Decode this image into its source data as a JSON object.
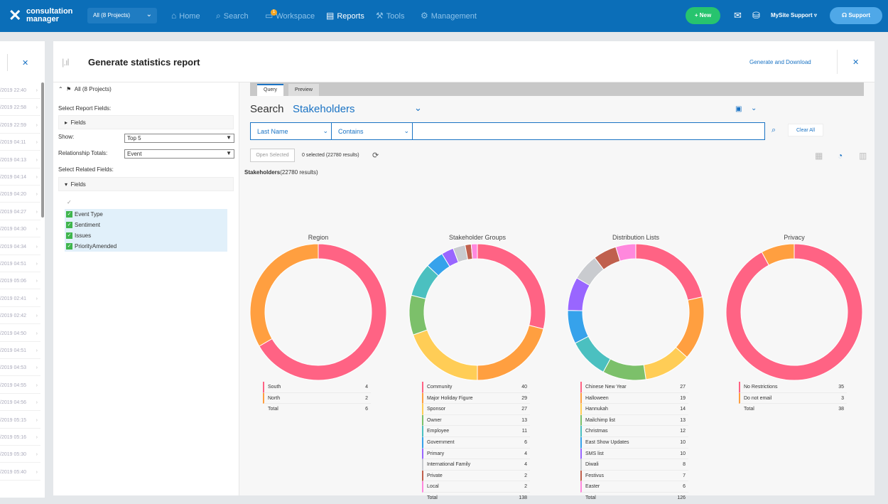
{
  "topbar": {
    "logo_line1": "consultation",
    "logo_line2": "manager",
    "project_select": "All (8 Projects)",
    "nav": [
      {
        "label": "Home",
        "icon": "home-icon",
        "glyph": "⌂"
      },
      {
        "label": "Search",
        "icon": "search-icon",
        "glyph": "⌕"
      },
      {
        "label": "Workspace",
        "icon": "workspace-icon",
        "glyph": "▭",
        "badge": "1"
      },
      {
        "label": "Reports",
        "icon": "reports-icon",
        "glyph": "▤"
      },
      {
        "label": "Tools",
        "icon": "wrench-icon",
        "glyph": "⚒"
      },
      {
        "label": "Management",
        "icon": "gear-icon",
        "glyph": "⚙"
      }
    ],
    "new_button": "+ New",
    "site_label": "MySite Support ▿",
    "support_button": "Support"
  },
  "left_strip": {
    "timestamps": [
      "/2019 22:40",
      "/2019 22:58",
      "/2019 22:59",
      "/2019 04:11",
      "/2019 04:13",
      "/2019 04:14",
      "/2019 04:20",
      "/2019 04:27",
      "/2019 04:30",
      "/2019 04:34",
      "/2019 04:51",
      "/2019 05:06",
      "/2019 02:41",
      "/2019 02:42",
      "/2019 04:50",
      "/2019 04:51",
      "/2019 04:53",
      "/2019 04:55",
      "/2019 04:56",
      "/2019 05:15",
      "/2019 05:16",
      "/2019 05:30",
      "/2019 05:40"
    ]
  },
  "panel": {
    "title": "Generate statistics report",
    "generate_link": "Generate and Download"
  },
  "settings": {
    "scope": "All (8 Projects)",
    "report_fields_label": "Select Report Fields:",
    "fields_label": "Fields",
    "show_label": "Show:",
    "show_value": "Top 5",
    "relationship_label": "Relationship Totals:",
    "relationship_value": "Event",
    "related_label": "Select Related Fields:",
    "related_fields_label": "Fields",
    "checked_fields": [
      "Event Type",
      "Sentiment",
      "Issues",
      "PriorityAmended"
    ]
  },
  "query": {
    "tabs": [
      "Query",
      "Preview"
    ],
    "search_label": "Search",
    "entity": "Stakeholders",
    "filter_field": "Last Name",
    "filter_op": "Contains",
    "filter_value": "",
    "clear_all": "Clear All",
    "open_selected": "Open Selected",
    "selected_count": "0 selected (22780 results)",
    "result_title": "Stakeholders",
    "result_count": "(22780 results)"
  },
  "colors": {
    "pink": "#ff6384",
    "orange": "#ff9f40",
    "yellow": "#ffcd56",
    "green": "#7cc06a",
    "teal": "#4bc0c0",
    "blue": "#36a2eb",
    "purple": "#9966ff",
    "gray": "#c9cbcf",
    "brown": "#c0604d",
    "light_pink": "#ff88dd"
  },
  "chart_data": [
    {
      "type": "pie",
      "title": "Region",
      "categories": [
        "South",
        "North"
      ],
      "values": [
        4,
        2
      ],
      "colors": [
        "#ff6384",
        "#ff9f40"
      ],
      "total_label": "Total",
      "total": 6
    },
    {
      "type": "pie",
      "title": "Stakeholder Groups",
      "categories": [
        "Community",
        "Major Holiday Figure",
        "Sponsor",
        "Owner",
        "Employee",
        "Government",
        "Primary",
        "International Family",
        "Private",
        "Local"
      ],
      "values": [
        40,
        29,
        27,
        13,
        11,
        6,
        4,
        4,
        2,
        2
      ],
      "colors": [
        "#ff6384",
        "#ff9f40",
        "#ffcd56",
        "#7cc06a",
        "#4bc0c0",
        "#36a2eb",
        "#9966ff",
        "#c9cbcf",
        "#c0604d",
        "#ff88dd"
      ],
      "total_label": "Total",
      "total": 138
    },
    {
      "type": "pie",
      "title": "Distribution Lists",
      "categories": [
        "Chinese New Year",
        "Halloween",
        "Hannukah",
        "Mailchimp list",
        "Christmas",
        "East Show Updates",
        "SMS list",
        "Diwali",
        "Festivus",
        "Easter"
      ],
      "values": [
        27,
        19,
        14,
        13,
        12,
        10,
        10,
        8,
        7,
        6
      ],
      "colors": [
        "#ff6384",
        "#ff9f40",
        "#ffcd56",
        "#7cc06a",
        "#4bc0c0",
        "#36a2eb",
        "#9966ff",
        "#c9cbcf",
        "#c0604d",
        "#ff88dd"
      ],
      "total_label": "Total",
      "total": 126
    },
    {
      "type": "pie",
      "title": "Privacy",
      "categories": [
        "No Restrictions",
        "Do not email"
      ],
      "values": [
        35,
        3
      ],
      "colors": [
        "#ff6384",
        "#ff9f40"
      ],
      "total_label": "Total",
      "total": 38
    }
  ]
}
